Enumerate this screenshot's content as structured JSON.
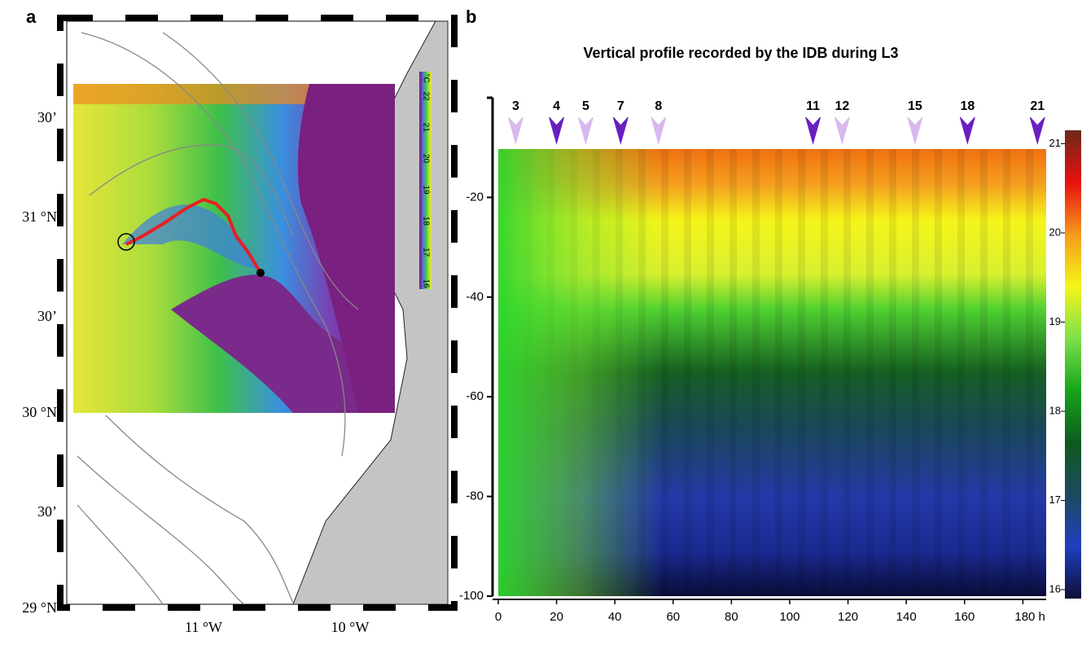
{
  "panel_a": {
    "label": "a",
    "lat_labels": [
      "30’",
      "31 °N",
      "30’",
      "30 °N",
      "30’",
      "29 °N"
    ],
    "lon_labels": [
      "11 °W",
      "10 °W"
    ],
    "colorbar_unit": "°C",
    "colorbar_labels": [
      "22",
      "21",
      "20",
      "19",
      "18",
      "17",
      "16"
    ]
  },
  "chart_data": {
    "type": "heatmap",
    "panel_label": "b",
    "title": "Vertical profile recorded by the IDB during L3",
    "xlim": [
      0,
      188
    ],
    "ylim": [
      -100,
      0
    ],
    "xticks": [
      0,
      20,
      40,
      60,
      80,
      100,
      120,
      140,
      160,
      {
        "value": 180,
        "label": "180 h"
      }
    ],
    "yticks": [
      -20,
      -40,
      -60,
      -80,
      -100
    ],
    "markers": {
      "labels": [
        "3",
        "4",
        "5",
        "7",
        "8",
        "11",
        "12",
        "15",
        "18",
        "21"
      ],
      "x": [
        6,
        20,
        30,
        42,
        55,
        108,
        118,
        143,
        161,
        185
      ],
      "colors": [
        "#d9b8ee",
        "#6a1fc0",
        "#d9b8ee",
        "#6a1fc0",
        "#d9b8ee",
        "#6a1fc0",
        "#d9b8ee",
        "#d9b8ee",
        "#6a1fc0",
        "#6a1fc0"
      ]
    },
    "colorbar": {
      "lim": [
        15.9,
        21.15
      ],
      "ticks": [
        16,
        17,
        18,
        19,
        20,
        21
      ],
      "colors": [
        "#0d0f3a",
        "#1f3fbf",
        "#1d4a5e",
        "#0d5a1f",
        "#17a51a",
        "#7de04a",
        "#f5f51a",
        "#f59a1a",
        "#e81010",
        "#6a2a1a"
      ]
    }
  }
}
